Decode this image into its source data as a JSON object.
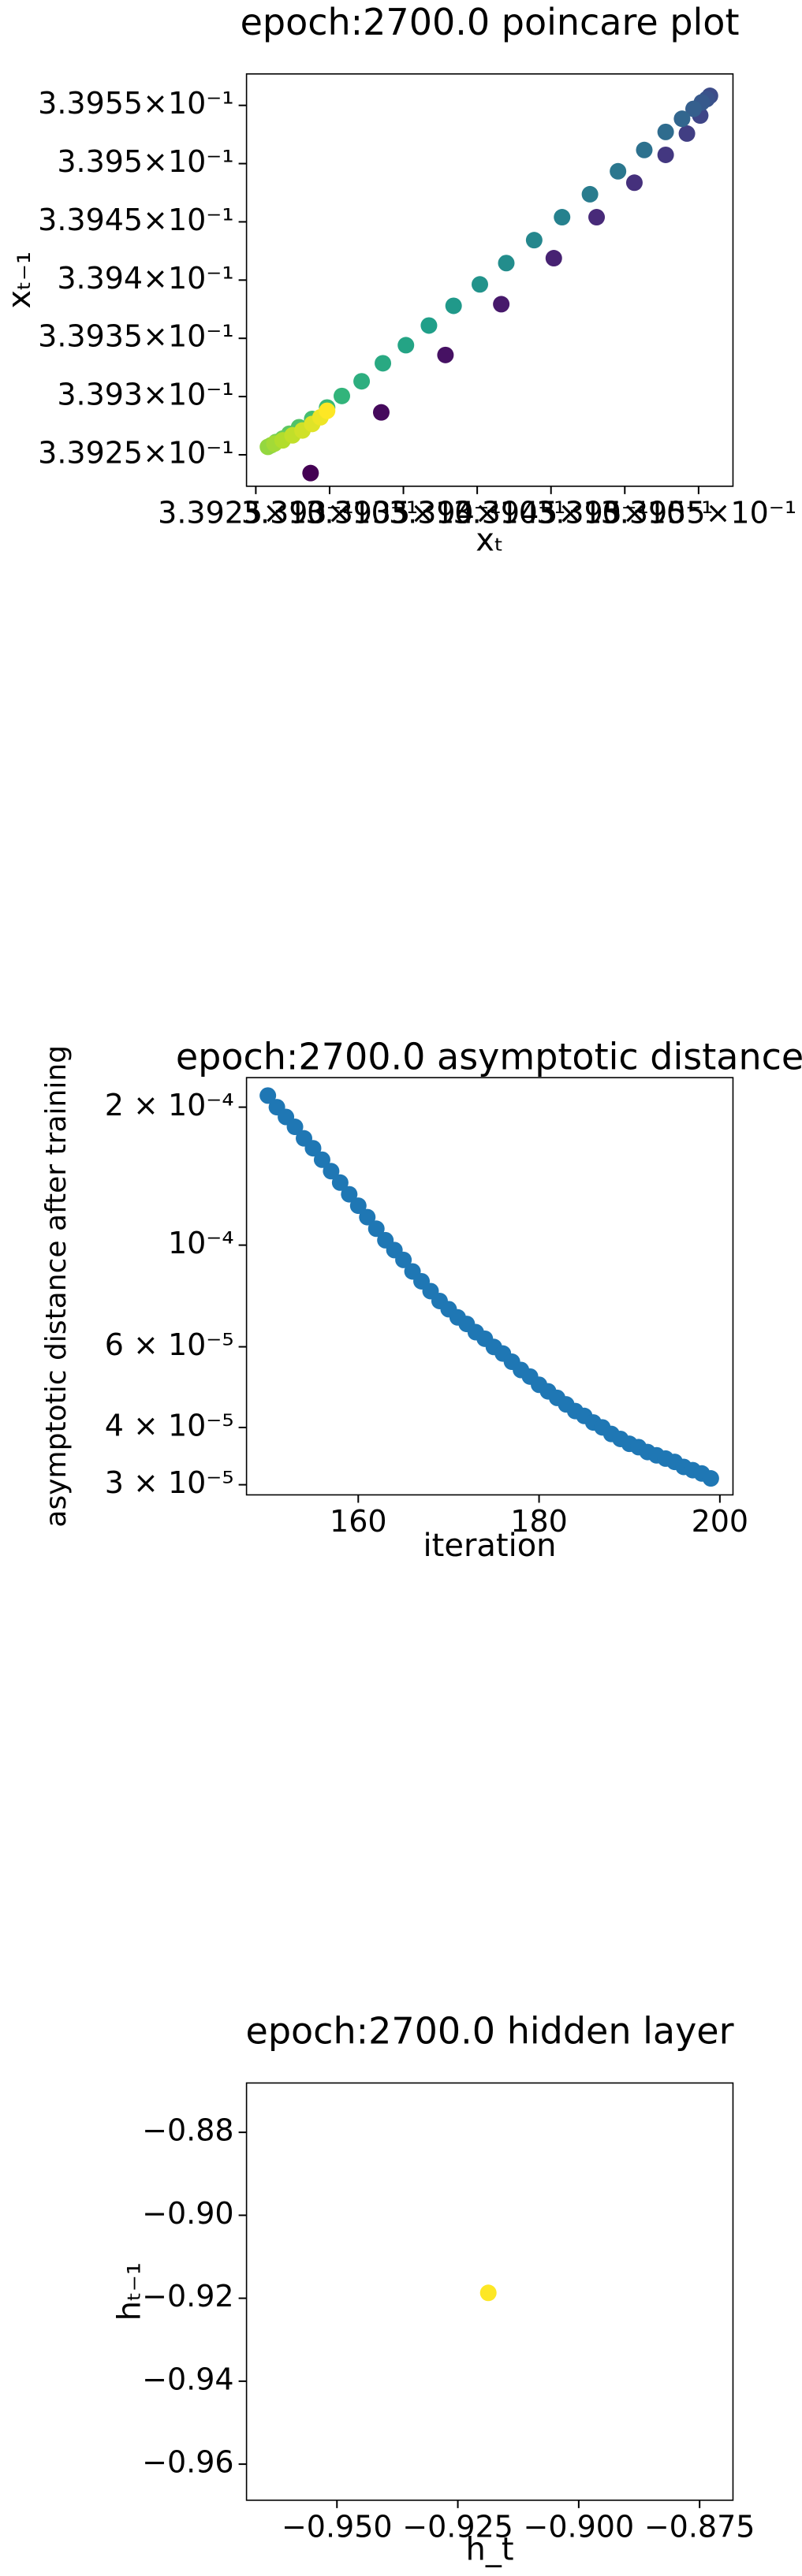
{
  "chart_data": [
    {
      "type": "scatter",
      "title": "epoch:2700.0 poincare plot",
      "xlabel": "xₜ",
      "ylabel": "xₜ₋₁",
      "colormap": "viridis",
      "x": [
        0.3392871,
        0.339335,
        0.3393785,
        0.3394163,
        0.3394519,
        0.3394809,
        0.3395065,
        0.3395277,
        0.3395421,
        0.3395511,
        0.3395577,
        0.3395555,
        0.3395522,
        0.3395466,
        0.3395388,
        0.3395277,
        0.3395132,
        0.3394954,
        0.3394764,
        0.3394575,
        0.3394386,
        0.3394197,
        0.3394018,
        0.339384,
        0.3393673,
        0.3393517,
        0.3393361,
        0.3393217,
        0.3393083,
        0.3392983,
        0.3392882,
        0.3392793,
        0.3392727,
        0.3392682,
        0.3392637,
        0.3392604,
        0.3392582,
        0.3392626,
        0.3392682,
        0.3392749,
        0.3392816,
        0.3392882,
        0.3392938,
        0.3392983
      ],
      "y": [
        0.3392343,
        0.3392864,
        0.3393357,
        0.3393793,
        0.3394188,
        0.339454,
        0.3394836,
        0.3395075,
        0.3395258,
        0.3395413,
        0.3395582,
        0.3395554,
        0.3395526,
        0.339547,
        0.3395385,
        0.3395272,
        0.3395117,
        0.3394934,
        0.3394737,
        0.339454,
        0.3394343,
        0.3394146,
        0.3393963,
        0.3393779,
        0.339361,
        0.3393441,
        0.3393286,
        0.3393131,
        0.3393005,
        0.3392906,
        0.3392808,
        0.3392737,
        0.3392681,
        0.3392639,
        0.339261,
        0.3392582,
        0.3392568,
        0.3392596,
        0.3392624,
        0.3392667,
        0.3392709,
        0.3392765,
        0.3392822,
        0.3392878
      ],
      "xlim": [
        0.3392437,
        0.3395733
      ],
      "ylim": [
        0.339223,
        0.339577
      ],
      "xticks": [
        {
          "value": 0.33925,
          "label": "3.3925×10⁻¹"
        },
        {
          "value": 0.3393,
          "label": "3.393×10⁻¹"
        },
        {
          "value": 0.33935,
          "label": "3.3935×10⁻¹"
        },
        {
          "value": 0.3394,
          "label": "3.394×10⁻¹"
        },
        {
          "value": 0.33945,
          "label": "3.3945×10⁻¹"
        },
        {
          "value": 0.3395,
          "label": "3.395×10⁻¹"
        },
        {
          "value": 0.33955,
          "label": "3.3955×10⁻¹"
        }
      ],
      "yticks": [
        {
          "value": 0.33925,
          "label": "3.3925×10⁻¹"
        },
        {
          "value": 0.3393,
          "label": "3.393×10⁻¹"
        },
        {
          "value": 0.33935,
          "label": "3.3935×10⁻¹"
        },
        {
          "value": 0.3394,
          "label": "3.394×10⁻¹"
        },
        {
          "value": 0.33945,
          "label": "3.3945×10⁻¹"
        },
        {
          "value": 0.3395,
          "label": "3.395×10⁻¹"
        },
        {
          "value": 0.33955,
          "label": "3.3955×10⁻¹"
        }
      ]
    },
    {
      "type": "scatter",
      "title": "epoch:2700.0 asymptotic distance",
      "xlabel": "iteration",
      "ylabel": "asymptotic distance after training",
      "color": "#1f77b4",
      "ylog": true,
      "x": [
        150,
        151,
        152,
        153,
        154,
        155,
        156,
        157,
        158,
        159,
        160,
        161,
        162,
        163,
        164,
        165,
        166,
        167,
        168,
        169,
        170,
        171,
        172,
        173,
        174,
        175,
        176,
        177,
        178,
        179,
        180,
        181,
        182,
        183,
        184,
        185,
        186,
        187,
        188,
        189,
        190,
        191,
        192,
        193,
        194,
        195,
        196,
        197,
        198,
        199
      ],
      "y": [
        0.000212,
        0.0002,
        0.0001904,
        0.0001812,
        0.000171,
        0.0001627,
        0.0001536,
        0.000145,
        0.0001369,
        0.0001291,
        0.0001219,
        0.0001151,
        0.0001086,
        0.0001025,
        9.755e-05,
        9.284e-05,
        8.763e-05,
        8.339e-05,
        7.937e-05,
        7.553e-05,
        7.248e-05,
        6.955e-05,
        6.73e-05,
        6.457e-05,
        6.248e-05,
        5.995e-05,
        5.8e-05,
        5.566e-05,
        5.34e-05,
        5.167e-05,
        4.958e-05,
        4.797e-05,
        4.642e-05,
        4.492e-05,
        4.345e-05,
        4.239e-05,
        4.102e-05,
        4.002e-05,
        3.872e-05,
        3.777e-05,
        3.685e-05,
        3.624e-05,
        3.536e-05,
        3.478e-05,
        3.421e-05,
        3.365e-05,
        3.281e-05,
        3.228e-05,
        3.175e-05,
        3.097e-05
      ],
      "xlim": [
        147.64,
        201.45
      ],
      "ylim": [
        2.851e-05,
        0.000232
      ],
      "xticks": [
        160,
        180,
        200
      ],
      "yticks": [
        {
          "value": 0.0002,
          "label": "2 × 10⁻⁴"
        },
        {
          "value": 0.0001,
          "label": "10⁻⁴"
        },
        {
          "value": 6e-05,
          "label": "6 × 10⁻⁵"
        },
        {
          "value": 4e-05,
          "label": "4 × 10⁻⁵"
        },
        {
          "value": 3e-05,
          "label": "3 × 10⁻⁵"
        }
      ]
    },
    {
      "type": "scatter",
      "title": "epoch:2700.0 hidden layer",
      "xlabel": "h_t",
      "ylabel": "hₜ₋₁",
      "color": "#fde725",
      "x": [
        -0.9187
      ],
      "y": [
        -0.9187
      ],
      "xlim": [
        -0.9687,
        -0.8681
      ],
      "ylim": [
        -0.9687,
        -0.8681
      ],
      "xticks": [
        {
          "value": -0.95,
          "label": "−0.950"
        },
        {
          "value": -0.925,
          "label": "−0.925"
        },
        {
          "value": -0.9,
          "label": "−0.900"
        },
        {
          "value": -0.875,
          "label": "−0.875"
        }
      ],
      "yticks": [
        {
          "value": -0.88,
          "label": "−0.88"
        },
        {
          "value": -0.9,
          "label": "−0.90"
        },
        {
          "value": -0.92,
          "label": "−0.92"
        },
        {
          "value": -0.94,
          "label": "−0.94"
        },
        {
          "value": -0.96,
          "label": "−0.96"
        }
      ]
    }
  ]
}
